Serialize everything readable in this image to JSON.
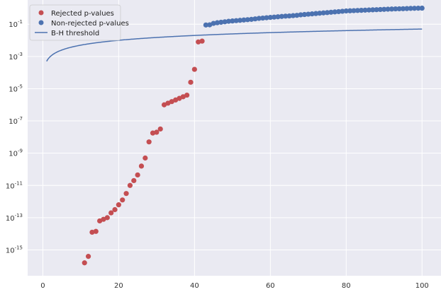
{
  "chart_data": {
    "type": "scatter",
    "title": "",
    "xlabel": "",
    "ylabel": "",
    "log_scale_y": true,
    "xlim": [
      -4,
      105
    ],
    "ylim_log10": [
      -16.6,
      0.5
    ],
    "x_ticks": [
      0,
      20,
      40,
      60,
      80,
      100
    ],
    "y_ticks_log10": [
      -15,
      -13,
      -11,
      -9,
      -7,
      -5,
      -3,
      -1
    ],
    "grid": true,
    "background": "#eaeaf2",
    "legend_position": "top-left",
    "series": [
      {
        "name": "Rejected p-values",
        "kind": "scatter",
        "color": "#c44e52",
        "x": [
          11,
          12,
          13,
          14,
          15,
          16,
          17,
          18,
          19,
          20,
          21,
          22,
          23,
          24,
          25,
          26,
          27,
          28,
          29,
          30,
          31,
          32,
          33,
          34,
          35,
          36,
          37,
          38,
          39,
          40,
          41,
          42
        ],
        "log10_y": [
          -15.8,
          -15.4,
          -13.9,
          -13.85,
          -13.2,
          -13.1,
          -13.0,
          -12.7,
          -12.5,
          -12.2,
          -11.9,
          -11.5,
          -11.0,
          -10.7,
          -10.35,
          -9.8,
          -9.3,
          -8.3,
          -7.75,
          -7.7,
          -7.5,
          -6.0,
          -5.9,
          -5.8,
          -5.7,
          -5.6,
          -5.5,
          -5.4,
          -4.6,
          -3.8,
          -2.1,
          -2.05
        ]
      },
      {
        "name": "Non-rejected p-values",
        "kind": "scatter",
        "color": "#4c72b0",
        "x": [
          43,
          44,
          45,
          46,
          47,
          48,
          49,
          50,
          51,
          52,
          53,
          54,
          55,
          56,
          57,
          58,
          59,
          60,
          61,
          62,
          63,
          64,
          65,
          66,
          67,
          68,
          69,
          70,
          71,
          72,
          73,
          74,
          75,
          76,
          77,
          78,
          79,
          80,
          81,
          82,
          83,
          84,
          85,
          86,
          87,
          88,
          89,
          90,
          91,
          92,
          93,
          94,
          95,
          96,
          97,
          98,
          99,
          100
        ],
        "log10_y": [
          -1.05,
          -1.04,
          -0.95,
          -0.91,
          -0.88,
          -0.85,
          -0.82,
          -0.8,
          -0.78,
          -0.76,
          -0.74,
          -0.72,
          -0.7,
          -0.67,
          -0.64,
          -0.62,
          -0.6,
          -0.58,
          -0.56,
          -0.54,
          -0.52,
          -0.5,
          -0.49,
          -0.47,
          -0.45,
          -0.42,
          -0.4,
          -0.38,
          -0.36,
          -0.34,
          -0.32,
          -0.3,
          -0.28,
          -0.26,
          -0.24,
          -0.22,
          -0.2,
          -0.18,
          -0.17,
          -0.16,
          -0.15,
          -0.14,
          -0.13,
          -0.12,
          -0.11,
          -0.1,
          -0.09,
          -0.08,
          -0.07,
          -0.06,
          -0.05,
          -0.045,
          -0.04,
          -0.03,
          -0.02,
          -0.015,
          -0.01,
          -0.005
        ]
      },
      {
        "name": "B-H threshold",
        "kind": "line",
        "color": "#4c72b0",
        "alpha": 0.05,
        "n": 100,
        "x_range": [
          1,
          100
        ]
      }
    ]
  }
}
